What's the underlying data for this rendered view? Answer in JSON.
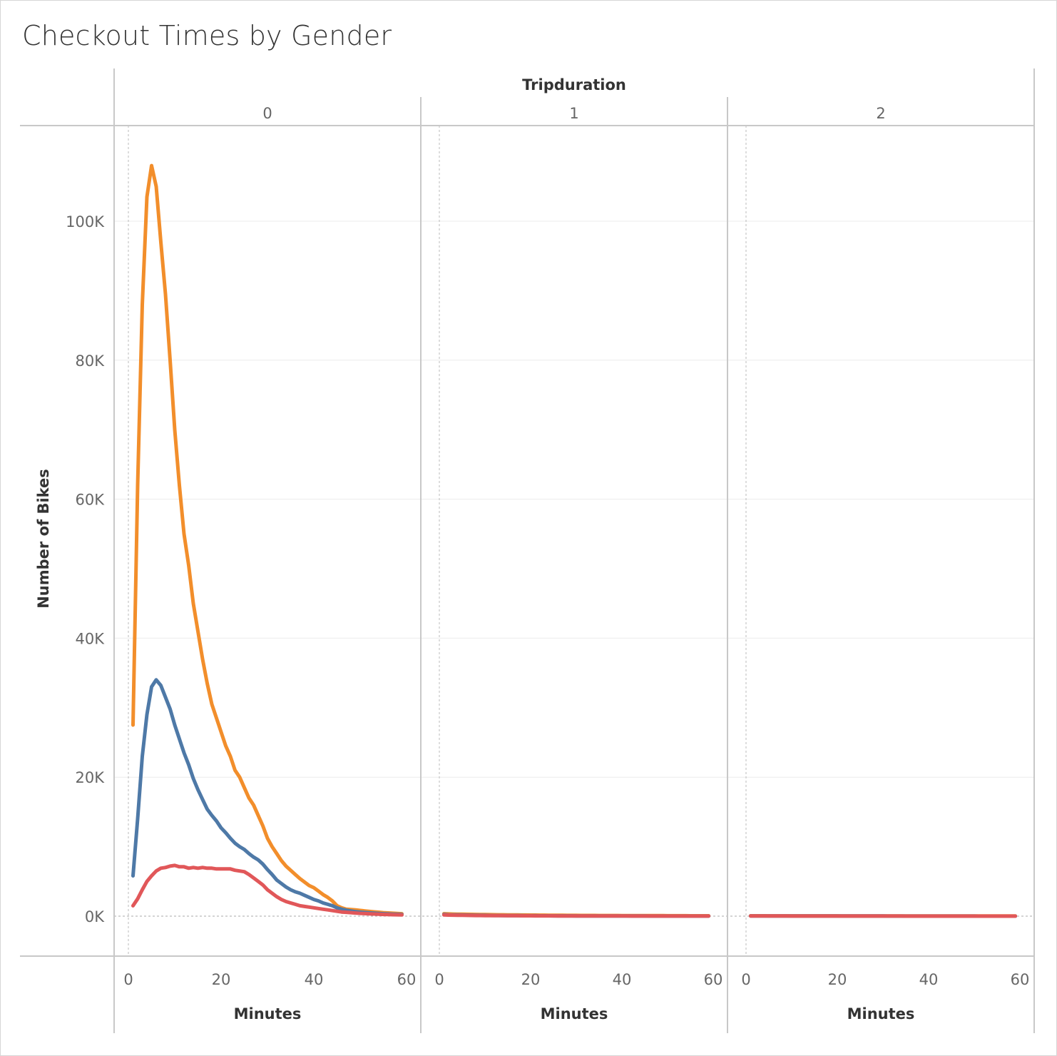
{
  "title": "Checkout Times by Gender",
  "chart_data": {
    "type": "line",
    "title": "Checkout Times by Gender",
    "column_header": "Tripduration",
    "panels": [
      "0",
      "1",
      "2"
    ],
    "xlabel": "Minutes",
    "ylabel": "Number of Bikes",
    "xlim": [
      0,
      60
    ],
    "ylim": [
      0,
      110000
    ],
    "x_ticks": [
      0,
      20,
      40,
      60
    ],
    "y_ticks": [
      0,
      20000,
      40000,
      60000,
      80000,
      100000
    ],
    "y_tick_labels": [
      "0K",
      "20K",
      "40K",
      "60K",
      "80K",
      "100K"
    ],
    "x_tick_labels": [
      "0",
      "20",
      "40",
      "60"
    ],
    "grid": true,
    "x": [
      1,
      2,
      3,
      4,
      5,
      6,
      7,
      8,
      9,
      10,
      11,
      12,
      13,
      14,
      15,
      16,
      17,
      18,
      19,
      20,
      21,
      22,
      23,
      24,
      25,
      26,
      27,
      28,
      29,
      30,
      31,
      32,
      33,
      34,
      35,
      36,
      37,
      38,
      39,
      40,
      41,
      42,
      43,
      44,
      45,
      46,
      47,
      48,
      49,
      50,
      51,
      52,
      53,
      54,
      55,
      56,
      57,
      58,
      59
    ],
    "series": [
      {
        "color": "#f28e2b",
        "panel_values": [
          [
            27500,
            62000,
            88000,
            103500,
            108000,
            105000,
            97000,
            89500,
            80000,
            70000,
            62000,
            55000,
            50500,
            45000,
            41000,
            37000,
            33500,
            30500,
            28500,
            26500,
            24500,
            23000,
            21000,
            20000,
            18500,
            17000,
            16000,
            14500,
            13000,
            11200,
            10000,
            9000,
            8000,
            7200,
            6600,
            6000,
            5400,
            4900,
            4400,
            4100,
            3600,
            3100,
            2700,
            2200,
            1500,
            1200,
            1000,
            950,
            900,
            820,
            750,
            680,
            620,
            560,
            500,
            460,
            420,
            390,
            350
          ],
          [
            350,
            320,
            300,
            290,
            280,
            270,
            260,
            250,
            240,
            230,
            220,
            210,
            200,
            190,
            180,
            175,
            170,
            165,
            160,
            155,
            150,
            145,
            140,
            135,
            130,
            125,
            120,
            115,
            110,
            108,
            105,
            102,
            100,
            98,
            96,
            94,
            92,
            90,
            88,
            86,
            84,
            82,
            80,
            78,
            76,
            74,
            72,
            70,
            68,
            66,
            64,
            62,
            60,
            58,
            56,
            54,
            52,
            50,
            48
          ],
          [
            50,
            49,
            48,
            47,
            46,
            45,
            44,
            43,
            42,
            41,
            40,
            40,
            39,
            39,
            38,
            38,
            37,
            37,
            36,
            36,
            35,
            35,
            34,
            34,
            33,
            33,
            32,
            32,
            31,
            31,
            30,
            30,
            29,
            29,
            28,
            28,
            27,
            27,
            26,
            26,
            25,
            25,
            24,
            24,
            23,
            23,
            22,
            22,
            21,
            21,
            20,
            20,
            19,
            19,
            18,
            18,
            17,
            17,
            16
          ]
        ]
      },
      {
        "color": "#4e79a7",
        "panel_values": [
          [
            5800,
            14000,
            23000,
            29000,
            33000,
            34000,
            33200,
            31500,
            29800,
            27500,
            25500,
            23500,
            21800,
            19800,
            18200,
            16800,
            15400,
            14500,
            13700,
            12700,
            12000,
            11200,
            10500,
            10000,
            9600,
            9000,
            8500,
            8100,
            7500,
            6700,
            6000,
            5200,
            4700,
            4200,
            3800,
            3500,
            3300,
            3000,
            2700,
            2400,
            2200,
            1900,
            1700,
            1500,
            1200,
            1000,
            850,
            750,
            650,
            580,
            520,
            470,
            430,
            390,
            350,
            320,
            290,
            270,
            250
          ],
          [
            250,
            200,
            180,
            170,
            160,
            150,
            140,
            130,
            120,
            110,
            100,
            95,
            90,
            85,
            80,
            76,
            72,
            68,
            64,
            60,
            57,
            54,
            51,
            48,
            45,
            42,
            40,
            38,
            36,
            34,
            32,
            30,
            28,
            27,
            26,
            25,
            24,
            23,
            22,
            21,
            20,
            19,
            18,
            17,
            16,
            15,
            14,
            14,
            13,
            13,
            12,
            12,
            11,
            11,
            10,
            10,
            9,
            9,
            8
          ],
          [
            35,
            34,
            33,
            32,
            31,
            30,
            29,
            28,
            27,
            26,
            25,
            25,
            24,
            24,
            23,
            23,
            22,
            22,
            21,
            21,
            20,
            20,
            19,
            19,
            18,
            18,
            17,
            17,
            16,
            16,
            15,
            15,
            14,
            14,
            13,
            13,
            12,
            12,
            11,
            11,
            10,
            10,
            9,
            9,
            8,
            8,
            7,
            7,
            6,
            6,
            5,
            5,
            5,
            4,
            4,
            4,
            3,
            3,
            3
          ]
        ]
      },
      {
        "color": "#e15759",
        "panel_values": [
          [
            1500,
            2500,
            3800,
            5000,
            5800,
            6500,
            6900,
            7000,
            7200,
            7300,
            7100,
            7100,
            6900,
            7000,
            6900,
            7000,
            6900,
            6900,
            6800,
            6800,
            6800,
            6800,
            6600,
            6500,
            6400,
            6000,
            5500,
            5000,
            4500,
            3800,
            3300,
            2800,
            2400,
            2100,
            1900,
            1700,
            1500,
            1400,
            1300,
            1200,
            1100,
            1000,
            900,
            800,
            700,
            600,
            550,
            500,
            450,
            400,
            370,
            340,
            310,
            280,
            250,
            230,
            210,
            190,
            170
          ],
          [
            170,
            150,
            140,
            130,
            120,
            110,
            100,
            95,
            90,
            85,
            80,
            76,
            72,
            68,
            64,
            60,
            57,
            54,
            51,
            48,
            45,
            42,
            40,
            38,
            36,
            34,
            32,
            30,
            28,
            27,
            26,
            25,
            24,
            23,
            22,
            21,
            20,
            19,
            18,
            17,
            16,
            15,
            14,
            14,
            13,
            13,
            12,
            12,
            11,
            11,
            10,
            10,
            9,
            9,
            8,
            8,
            7,
            7,
            6
          ],
          [
            20,
            19,
            19,
            18,
            18,
            17,
            17,
            16,
            16,
            15,
            15,
            14,
            14,
            13,
            13,
            12,
            12,
            11,
            11,
            10,
            10,
            10,
            9,
            9,
            9,
            8,
            8,
            8,
            7,
            7,
            7,
            6,
            6,
            6,
            5,
            5,
            5,
            5,
            4,
            4,
            4,
            4,
            3,
            3,
            3,
            3,
            3,
            2,
            2,
            2,
            2,
            2,
            2,
            1,
            1,
            1,
            1,
            1,
            1
          ]
        ]
      }
    ]
  }
}
